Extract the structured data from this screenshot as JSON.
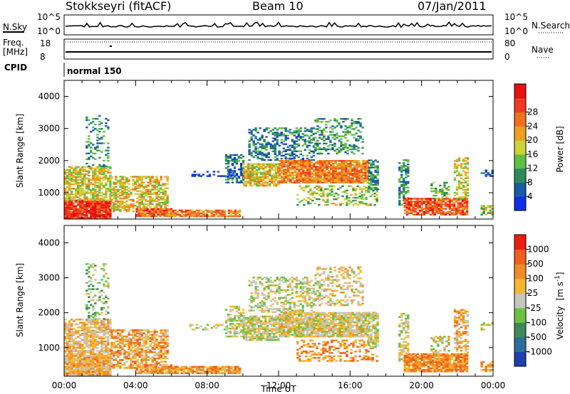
{
  "header": {
    "station": "Stokkseyri (fitACF)",
    "beam": "Beam 10",
    "date": "07/Jan/2011"
  },
  "aux_panels": {
    "nsky_label": "N.Sky",
    "nsky_ticks": [
      "10^5",
      "10^0"
    ],
    "nsearch_label": "N.Search",
    "nsearch_ticks": [
      "10^5",
      "10^0"
    ],
    "freq_label_1": "Freq.",
    "freq_label_2": "[MHz]",
    "freq_ticks": [
      "18",
      "8"
    ],
    "nave_label": "Nave",
    "nave_ticks": [
      "80",
      "0"
    ],
    "cpid_label": "CPID",
    "cpid_value": "normal 150"
  },
  "chart_data": [
    {
      "type": "heatmap",
      "name": "power",
      "ylabel": "Slant Range [km]",
      "ylim": [
        180,
        4500
      ],
      "yticks": [
        1000,
        2000,
        3000,
        4000
      ],
      "xlim": [
        "00:00",
        "24:00"
      ],
      "colorbar": {
        "label": "Power [dB]",
        "ticks": [
          "4",
          "8",
          "12",
          "16",
          "20",
          "24",
          "28"
        ],
        "colors": [
          "#1030e8",
          "#1a5aa8",
          "#2e8a5a",
          "#5cc040",
          "#ccd23a",
          "#f0a020",
          "#f07020",
          "#ef3a22",
          "#e81010"
        ]
      }
    },
    {
      "type": "heatmap",
      "name": "velocity",
      "ylabel": "Slant Range [km]",
      "ylim": [
        180,
        4500
      ],
      "yticks": [
        1000,
        2000,
        3000,
        4000
      ],
      "xlim": [
        "00:00",
        "24:00"
      ],
      "xlabel": "Time UT",
      "xticks": [
        "00:00",
        "04:00",
        "08:00",
        "12:00",
        "16:00",
        "20:00",
        "00:00"
      ],
      "colorbar": {
        "label": "Velocity",
        "unit_base": "[m s",
        "unit_exp": "-1",
        "unit_close": "]",
        "ticks": [
          "1000",
          "500",
          "100",
          "25",
          "-25",
          "-100",
          "-500",
          "-1000"
        ],
        "colors": [
          "#1f3fb0",
          "#2e6e9a",
          "#3c8a5a",
          "#6cc242",
          "#c6c6bc",
          "#f5b830",
          "#f28c24",
          "#ef6020",
          "#e82010"
        ]
      }
    }
  ]
}
